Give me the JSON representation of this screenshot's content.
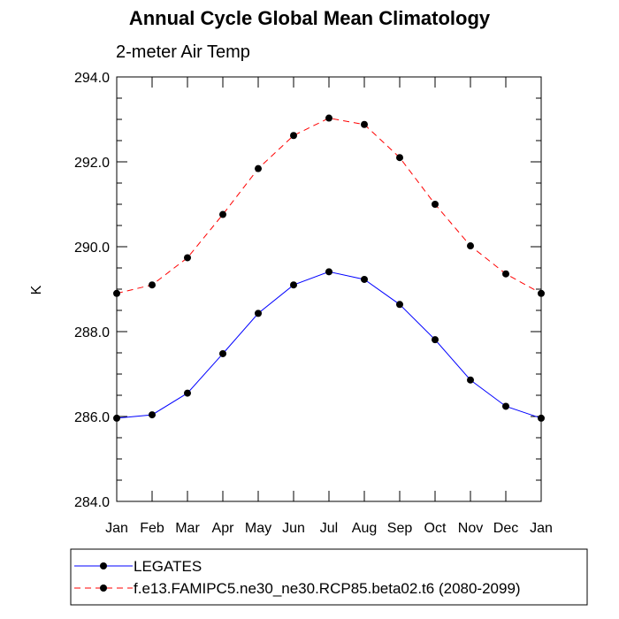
{
  "chart_data": {
    "type": "line",
    "title": "Annual Cycle Global Mean Climatology",
    "subtitle": "2-meter Air Temp",
    "xlabel": "",
    "ylabel": "K",
    "categories": [
      "Jan",
      "Feb",
      "Mar",
      "Apr",
      "May",
      "Jun",
      "Jul",
      "Aug",
      "Sep",
      "Oct",
      "Nov",
      "Dec",
      "Jan"
    ],
    "ylim": [
      284.0,
      294.0
    ],
    "yticks": [
      284.0,
      286.0,
      288.0,
      290.0,
      292.0,
      294.0
    ],
    "ytick_labels": [
      "284.0",
      "286.0",
      "288.0",
      "290.0",
      "292.0",
      "294.0"
    ],
    "grid": false,
    "legend_position": "bottom",
    "series": [
      {
        "name": "LEGATES",
        "color": "#0000ff",
        "dash": "solid",
        "marker": "circle",
        "values": [
          285.96,
          286.04,
          286.55,
          287.48,
          288.43,
          289.1,
          289.41,
          289.23,
          288.64,
          287.81,
          286.86,
          286.24,
          285.96
        ]
      },
      {
        "name": "f.e13.FAMIPC5.ne30_ne30.RCP85.beta02.t6 (2080-2099)",
        "color": "#ff0000",
        "dash": "dashed",
        "marker": "circle",
        "values": [
          288.9,
          289.1,
          289.74,
          290.76,
          291.84,
          292.62,
          293.03,
          292.88,
          292.1,
          291.0,
          290.02,
          289.36,
          288.9
        ]
      }
    ]
  }
}
